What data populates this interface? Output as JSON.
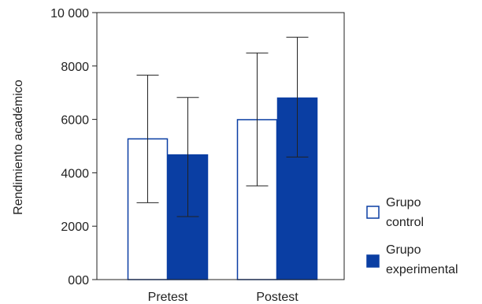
{
  "chart_data": {
    "type": "bar",
    "title": "",
    "xlabel": "",
    "ylabel": "Rendimiento académico",
    "ylim": [
      0,
      10000
    ],
    "yticks": [
      {
        "value": 0,
        "label": "000"
      },
      {
        "value": 2000,
        "label": "2000"
      },
      {
        "value": 4000,
        "label": "4000"
      },
      {
        "value": 6000,
        "label": "6000"
      },
      {
        "value": 8000,
        "label": "8000"
      },
      {
        "value": 10000,
        "label": "10 000"
      }
    ],
    "categories": [
      "Pretest",
      "Postest"
    ],
    "series": [
      {
        "name_lines": [
          "Grupo",
          "control"
        ],
        "values": [
          5270,
          5990
        ],
        "error_low": [
          2880,
          3510
        ],
        "error_high": [
          7660,
          8490
        ],
        "style": "hollow",
        "color": "#0a3ea3"
      },
      {
        "name_lines": [
          "Grupo",
          "experimental"
        ],
        "values": [
          4670,
          6800
        ],
        "error_low": [
          2360,
          4590
        ],
        "error_high": [
          6820,
          9080
        ],
        "style": "filled",
        "color": "#0a3ea3"
      }
    ],
    "grid": false,
    "legend_position": "right"
  }
}
